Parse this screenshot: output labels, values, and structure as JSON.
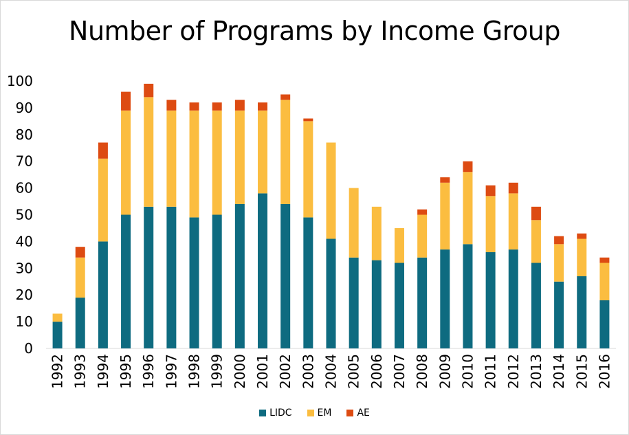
{
  "chart_data": {
    "type": "bar",
    "stacked": true,
    "title": "Number of Programs by Income Group",
    "xlabel": "",
    "ylabel": "",
    "ylim": [
      0,
      100
    ],
    "yticks": [
      0,
      10,
      20,
      30,
      40,
      50,
      60,
      70,
      80,
      90,
      100
    ],
    "grid": false,
    "legend_position": "bottom",
    "categories": [
      "1992",
      "1993",
      "1994",
      "1995",
      "1996",
      "1997",
      "1998",
      "1999",
      "2000",
      "2001",
      "2002",
      "2003",
      "2004",
      "2005",
      "2006",
      "2007",
      "2008",
      "2009",
      "2010",
      "2011",
      "2012",
      "2013",
      "2014",
      "2015",
      "2016"
    ],
    "series": [
      {
        "name": "LIDC",
        "color": "#0e6b80",
        "values": [
          10,
          19,
          40,
          50,
          53,
          53,
          49,
          50,
          54,
          58,
          54,
          49,
          41,
          34,
          33,
          32,
          34,
          37,
          39,
          36,
          37,
          32,
          25,
          27,
          18
        ]
      },
      {
        "name": "EM",
        "color": "#fbbd40",
        "values": [
          3,
          15,
          31,
          39,
          41,
          36,
          40,
          39,
          35,
          31,
          39,
          36,
          36,
          26,
          20,
          13,
          16,
          25,
          27,
          21,
          21,
          16,
          14,
          14,
          14
        ]
      },
      {
        "name": "AE",
        "color": "#dd4b12",
        "values": [
          0,
          4,
          6,
          7,
          5,
          4,
          3,
          3,
          4,
          3,
          2,
          1,
          0,
          0,
          0,
          0,
          2,
          2,
          4,
          4,
          4,
          5,
          3,
          2,
          2
        ]
      }
    ]
  }
}
